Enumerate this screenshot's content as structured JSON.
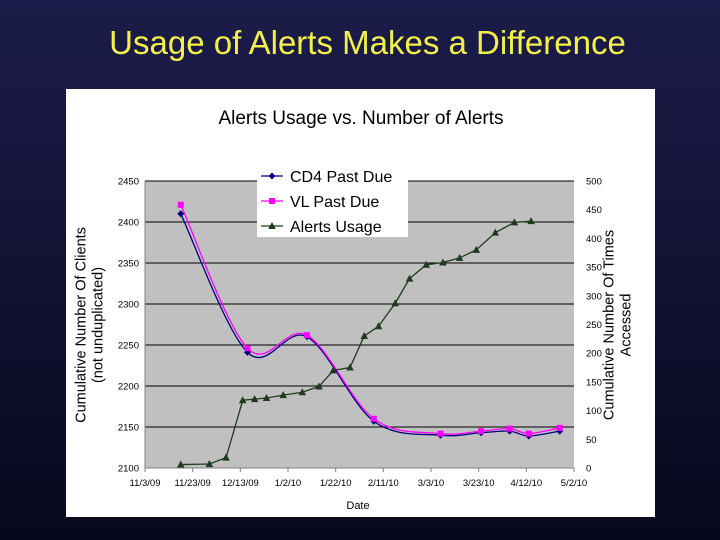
{
  "slide": {
    "title": "Usage of Alerts Makes a Difference"
  },
  "colors": {
    "background": "#15153c",
    "title": "#f4f04a",
    "plot_area": "#c0c0c0",
    "cd4": "#000080",
    "vl": "#ff00ff",
    "usage": "#1f3a1f"
  },
  "chart_data": {
    "type": "line",
    "title": "Alerts Usage vs. Number of Alerts",
    "xlabel": "Date",
    "ylabel_left": "Cumulative Number Of Clients (not unduplicated)",
    "ylabel_right": "Cumulative Number Of Times Accessed",
    "x_ticks": [
      "11/3/09",
      "11/23/09",
      "12/13/09",
      "1/2/10",
      "1/22/10",
      "2/11/10",
      "3/3/10",
      "3/23/10",
      "4/12/10",
      "5/2/10"
    ],
    "y_left_ticks": [
      2100,
      2150,
      2200,
      2250,
      2300,
      2350,
      2400,
      2450
    ],
    "y_right_ticks": [
      0,
      50,
      100,
      150,
      200,
      250,
      300,
      350,
      400,
      450,
      500
    ],
    "ylim_left": [
      2100,
      2450
    ],
    "ylim_right": [
      0,
      500
    ],
    "xlim": [
      "2009-11-03",
      "2010-05-02"
    ],
    "grid": "horizontal",
    "legend": "top-center",
    "series": [
      {
        "name": "CD4 Past Due",
        "axis": "left",
        "marker": "diamond",
        "smooth": true,
        "points": [
          {
            "x": "2009-11-18",
            "y": 2410
          },
          {
            "x": "2009-12-16",
            "y": 2241
          },
          {
            "x": "2010-01-10",
            "y": 2260
          },
          {
            "x": "2010-02-07",
            "y": 2157
          },
          {
            "x": "2010-03-07",
            "y": 2140
          },
          {
            "x": "2010-03-24",
            "y": 2143
          },
          {
            "x": "2010-04-05",
            "y": 2145
          },
          {
            "x": "2010-04-13",
            "y": 2139
          },
          {
            "x": "2010-04-26",
            "y": 2145
          }
        ]
      },
      {
        "name": "VL Past Due",
        "axis": "left",
        "marker": "square",
        "smooth": true,
        "points": [
          {
            "x": "2009-11-18",
            "y": 2421
          },
          {
            "x": "2009-12-16",
            "y": 2246
          },
          {
            "x": "2010-01-10",
            "y": 2262
          },
          {
            "x": "2010-02-07",
            "y": 2160
          },
          {
            "x": "2010-03-07",
            "y": 2142
          },
          {
            "x": "2010-03-24",
            "y": 2145
          },
          {
            "x": "2010-04-05",
            "y": 2148
          },
          {
            "x": "2010-04-13",
            "y": 2142
          },
          {
            "x": "2010-04-26",
            "y": 2149
          }
        ]
      },
      {
        "name": "Alerts Usage",
        "axis": "right",
        "marker": "triangle",
        "smooth": false,
        "points": [
          {
            "x": "2009-11-18",
            "y": 6
          },
          {
            "x": "2009-11-30",
            "y": 7
          },
          {
            "x": "2009-12-07",
            "y": 18
          },
          {
            "x": "2009-12-14",
            "y": 118
          },
          {
            "x": "2009-12-19",
            "y": 120
          },
          {
            "x": "2009-12-24",
            "y": 122
          },
          {
            "x": "2009-12-31",
            "y": 127
          },
          {
            "x": "2010-01-08",
            "y": 132
          },
          {
            "x": "2010-01-15",
            "y": 142
          },
          {
            "x": "2010-01-21",
            "y": 170
          },
          {
            "x": "2010-01-28",
            "y": 175
          },
          {
            "x": "2010-02-03",
            "y": 230
          },
          {
            "x": "2010-02-09",
            "y": 247
          },
          {
            "x": "2010-02-16",
            "y": 287
          },
          {
            "x": "2010-02-22",
            "y": 330
          },
          {
            "x": "2010-03-01",
            "y": 354
          },
          {
            "x": "2010-03-08",
            "y": 358
          },
          {
            "x": "2010-03-15",
            "y": 366
          },
          {
            "x": "2010-03-22",
            "y": 380
          },
          {
            "x": "2010-03-30",
            "y": 410
          },
          {
            "x": "2010-04-07",
            "y": 428
          },
          {
            "x": "2010-04-14",
            "y": 430
          }
        ]
      }
    ]
  }
}
